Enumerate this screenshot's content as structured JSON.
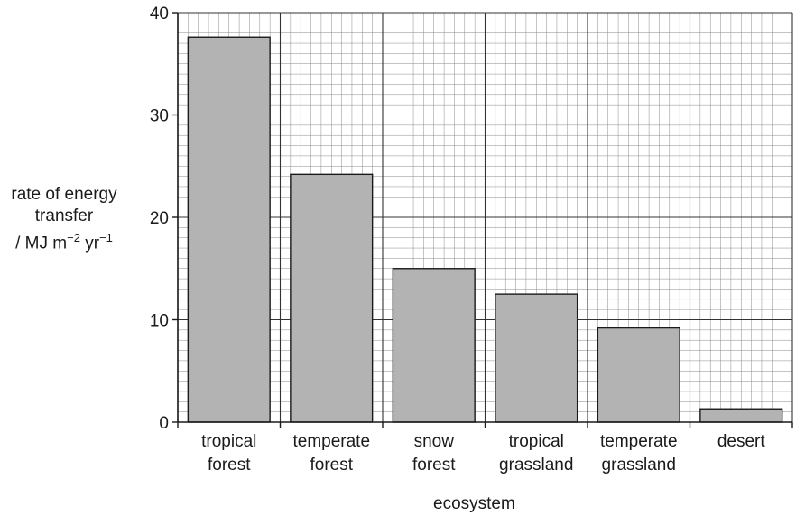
{
  "chart_data": {
    "type": "bar",
    "categories": [
      [
        "tropical",
        "forest"
      ],
      [
        "temperate",
        "forest"
      ],
      [
        "snow",
        "forest"
      ],
      [
        "tropical",
        "grassland"
      ],
      [
        "temperate",
        "grassland"
      ],
      [
        "desert"
      ]
    ],
    "values": [
      37.6,
      24.2,
      15.0,
      12.5,
      9.2,
      1.3
    ],
    "ylim": [
      0,
      40
    ],
    "yticks": [
      "0",
      "10",
      "20",
      "30",
      "40"
    ],
    "xlabel": "ecosystem",
    "ylabel": {
      "line1": "rate of energy",
      "line2": "transfer",
      "line3_prefix": "/ MJ m",
      "line3_exp1": "−2",
      "line3_mid": " yr",
      "line3_exp2": "−1"
    },
    "grid": true,
    "bar_color": "#b3b3b3"
  }
}
